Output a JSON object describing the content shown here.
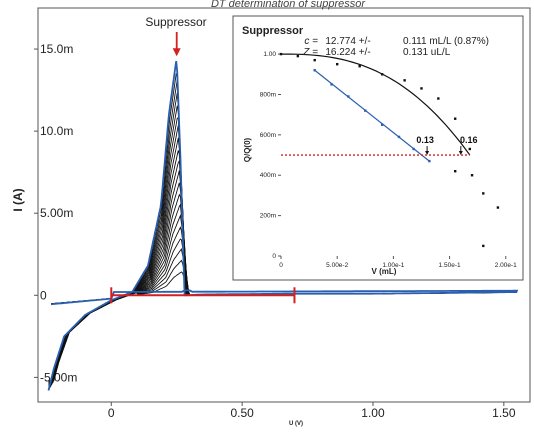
{
  "chart_data": [
    {
      "type": "line",
      "title": "DT determination of suppressor",
      "xlabel": "U (V)",
      "ylabel": "I (A)",
      "xlim": [
        -0.28,
        1.6
      ],
      "ylim": [
        -0.0065,
        0.0175
      ],
      "x_ticks": [
        0,
        0.5,
        1.0,
        1.5
      ],
      "x_tick_labels": [
        "0",
        "0.50",
        "1.00",
        "1.50"
      ],
      "y_ticks": [
        -0.005,
        0,
        0.005,
        0.01,
        0.015
      ],
      "y_tick_labels": [
        "-5.00m",
        "0",
        "5.00m",
        "10.0m",
        "15.0m"
      ],
      "annotation": "Suppressor",
      "peak": {
        "u": 0.25,
        "i": 0.0145
      },
      "curve_count": 20,
      "series": [
        {
          "values_x": [
            -0.24,
            -0.22,
            -0.18,
            -0.1,
            0.0,
            0.08,
            0.14,
            0.19,
            0.22,
            0.25,
            0.265,
            0.28,
            0.35,
            0.7,
            1.0,
            1.3,
            1.55
          ],
          "values_y": [
            -0.0058,
            -0.0045,
            -0.0025,
            -0.0012,
            -0.0003,
            0.0002,
            0.0018,
            0.0055,
            0.011,
            0.0145,
            0.008,
            0.0,
            5e-05,
            0.0001,
            0.0001,
            0.00015,
            0.0002
          ]
        }
      ],
      "integration_range": {
        "from": 0.0,
        "to": 0.7,
        "level": 0.0
      }
    },
    {
      "type": "scatter",
      "title": "Suppressor",
      "legend_lines": [
        {
          "sym": "c =",
          "value": "12.774 +/-",
          "err": "0.111 mL/L (0.87%)"
        },
        {
          "sym": "Z =",
          "value": "16.224 +/-",
          "err": "0.131 uL/L"
        }
      ],
      "xlabel": "V (mL)",
      "ylabel": "Q/Q(0)",
      "xlim": [
        0,
        0.21
      ],
      "ylim": [
        0,
        1.05
      ],
      "x_ticks": [
        0,
        0.05,
        0.1,
        0.15,
        0.2
      ],
      "x_tick_labels": [
        "0",
        "5.00e-2",
        "1.00e-1",
        "1.50e-1",
        "2.00e-1"
      ],
      "y_ticks": [
        0,
        0.2,
        0.4,
        0.6,
        0.8,
        1.0
      ],
      "y_tick_labels": [
        "0",
        "200m",
        "400m",
        "600m",
        "800m",
        "1.00"
      ],
      "points_black": [
        {
          "x": 0.0,
          "y": 1.0
        },
        {
          "x": 0.015,
          "y": 0.99
        },
        {
          "x": 0.03,
          "y": 0.97
        },
        {
          "x": 0.05,
          "y": 0.95
        },
        {
          "x": 0.07,
          "y": 0.94
        },
        {
          "x": 0.09,
          "y": 0.9
        },
        {
          "x": 0.11,
          "y": 0.87
        },
        {
          "x": 0.125,
          "y": 0.83
        },
        {
          "x": 0.14,
          "y": 0.78
        },
        {
          "x": 0.155,
          "y": 0.68
        },
        {
          "x": 0.168,
          "y": 0.53
        },
        {
          "x": 0.155,
          "y": 0.42
        },
        {
          "x": 0.17,
          "y": 0.4
        },
        {
          "x": 0.18,
          "y": 0.31
        },
        {
          "x": 0.193,
          "y": 0.24
        },
        {
          "x": 0.18,
          "y": 0.05
        }
      ],
      "points_blue": [
        {
          "x": 0.03,
          "y": 0.92
        },
        {
          "x": 0.045,
          "y": 0.85
        },
        {
          "x": 0.06,
          "y": 0.79
        },
        {
          "x": 0.075,
          "y": 0.72
        },
        {
          "x": 0.09,
          "y": 0.65
        },
        {
          "x": 0.105,
          "y": 0.59
        },
        {
          "x": 0.118,
          "y": 0.53
        },
        {
          "x": 0.132,
          "y": 0.47
        }
      ],
      "fit_black": {
        "x_start": 0.0,
        "y_start": 1.0,
        "x_end": 0.168,
        "y_end": 0.5
      },
      "fit_blue": {
        "x_start": 0.03,
        "y_start": 0.92,
        "x_end": 0.132,
        "y_end": 0.47
      },
      "reference_level": 0.5,
      "markers": [
        {
          "x": 0.13,
          "label": "0.13"
        },
        {
          "x": 0.16,
          "label": "0.16"
        }
      ]
    }
  ]
}
